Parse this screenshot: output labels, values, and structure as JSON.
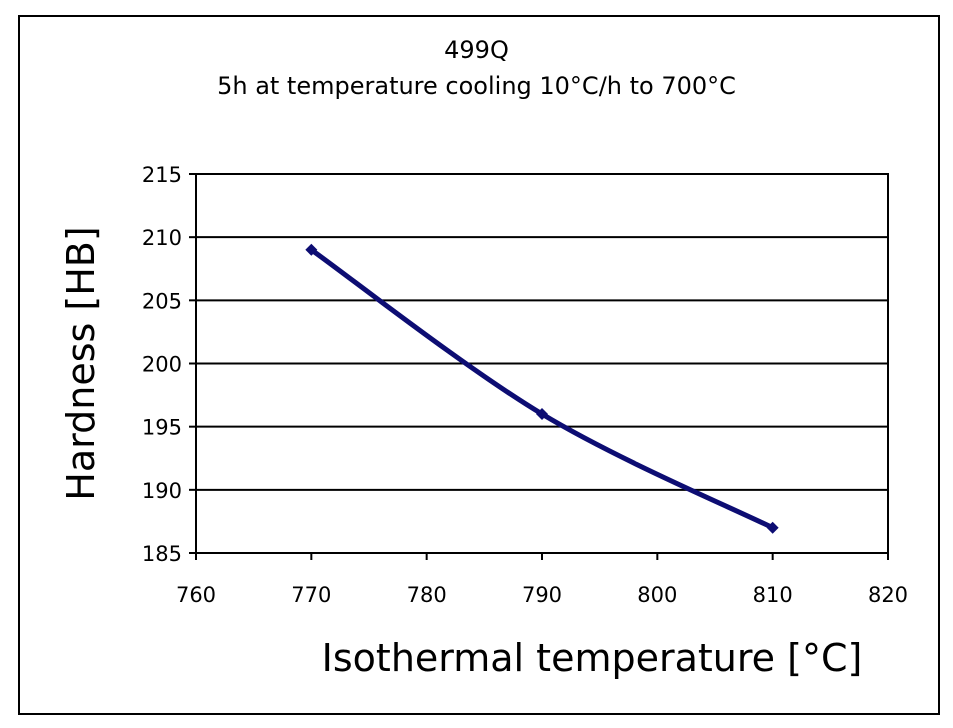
{
  "chart_data": {
    "type": "line",
    "title": "499Q",
    "subtitle": "5h at temperature cooling 10°C/h to 700°C",
    "xlabel": "Isothermal temperature [°C]",
    "ylabel": "Hardness [HB]",
    "xlim": [
      760,
      820
    ],
    "ylim": [
      185,
      215
    ],
    "xticks": [
      760,
      770,
      780,
      790,
      800,
      810,
      820
    ],
    "yticks": [
      185,
      190,
      195,
      200,
      205,
      210,
      215
    ],
    "grid": "horizontal",
    "legend": "none",
    "series": [
      {
        "x": [
          770,
          790,
          810
        ],
        "y": [
          209,
          196,
          187
        ],
        "color": "#0d0d73",
        "marker": "diamond"
      }
    ]
  }
}
